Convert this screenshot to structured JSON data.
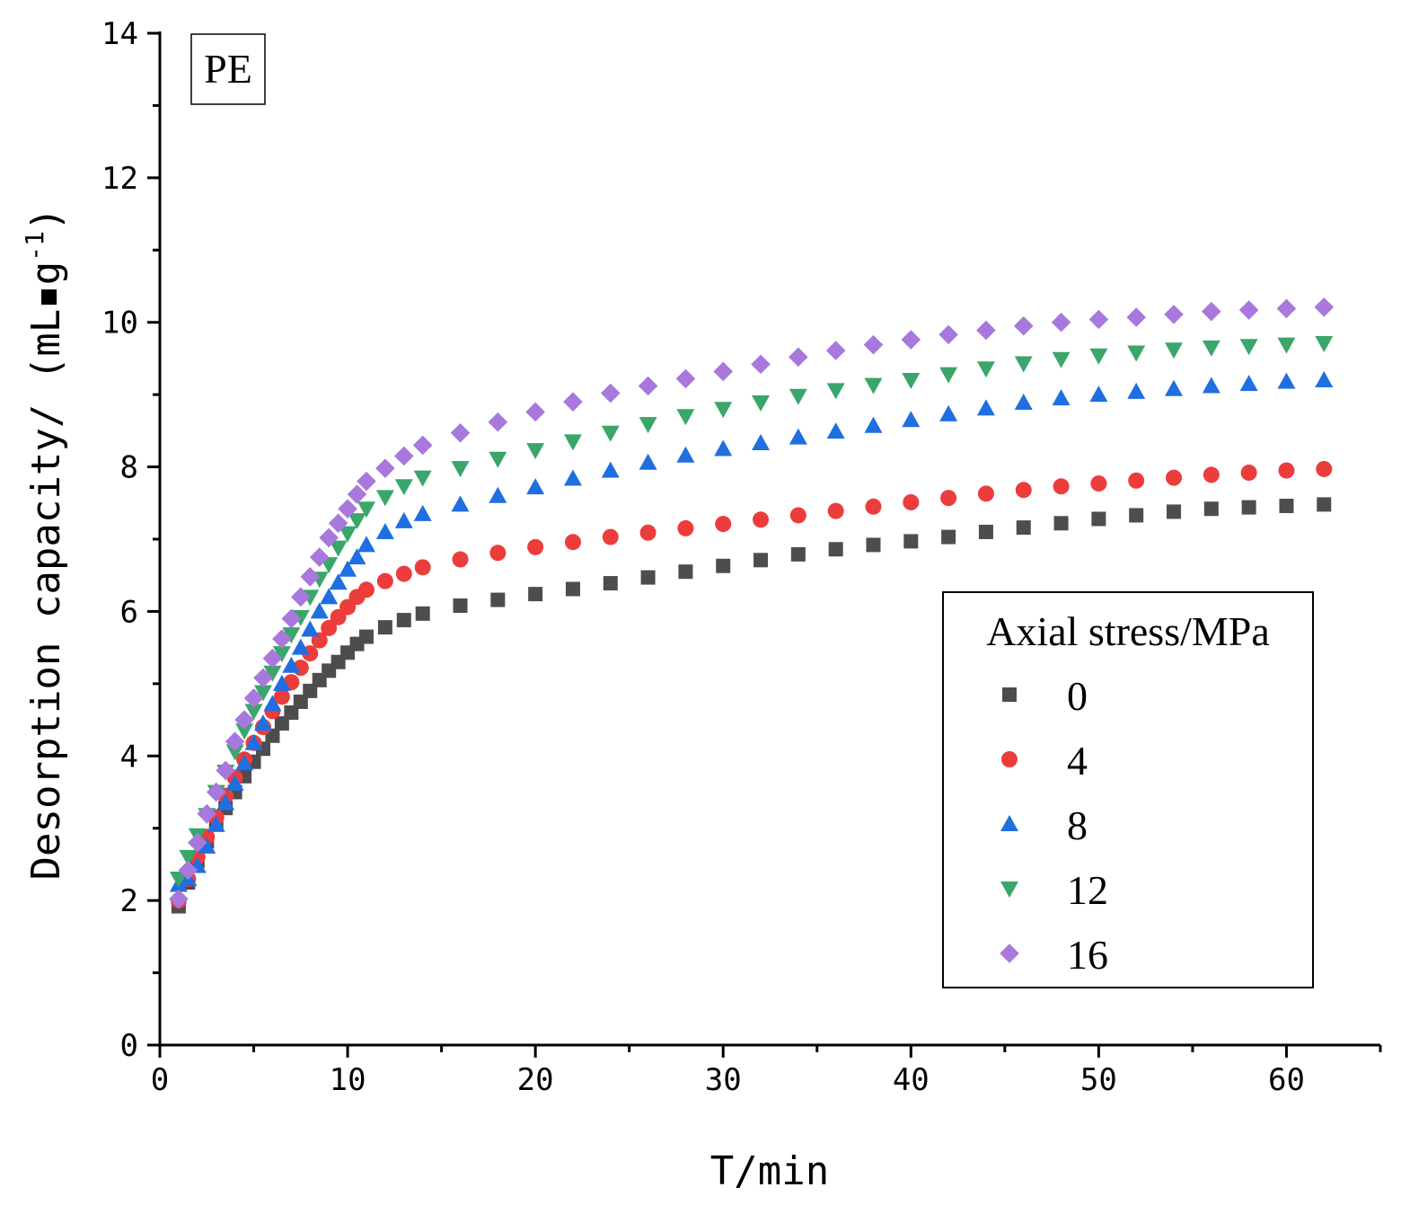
{
  "chart_data": {
    "type": "scatter",
    "title": "",
    "panel_label": "PE",
    "xlabel": "T/min",
    "ylabel_main": "Desorption capacity/  (mL",
    "ylabel_dot": "▪",
    "ylabel_unit": "g",
    "ylabel_sup": "-1",
    "ylabel_close": ")",
    "xlim": [
      0,
      65
    ],
    "ylim": [
      0,
      14
    ],
    "xticks": [
      0,
      10,
      20,
      30,
      40,
      50,
      60
    ],
    "yticks": [
      0,
      2,
      4,
      6,
      8,
      10,
      12,
      14
    ],
    "grid": false,
    "legend": {
      "title": "Axial stress/MPa",
      "position": "right"
    },
    "x": [
      1,
      1.5,
      2,
      2.5,
      3,
      3.5,
      4,
      4.5,
      5,
      5.5,
      6,
      6.5,
      7,
      7.5,
      8,
      8.5,
      9,
      9.5,
      10,
      10.5,
      11,
      12,
      13,
      14,
      16,
      18,
      20,
      22,
      24,
      26,
      28,
      30,
      32,
      34,
      36,
      38,
      40,
      42,
      44,
      46,
      48,
      50,
      52,
      54,
      56,
      58,
      60,
      62
    ],
    "series": [
      {
        "name": "0",
        "marker": "square",
        "color": "#4d4d4d",
        "values": [
          1.92,
          2.25,
          2.55,
          2.82,
          3.05,
          3.28,
          3.5,
          3.72,
          3.92,
          4.1,
          4.28,
          4.45,
          4.6,
          4.75,
          4.9,
          5.05,
          5.18,
          5.3,
          5.43,
          5.55,
          5.65,
          5.78,
          5.88,
          5.97,
          6.08,
          6.16,
          6.24,
          6.31,
          6.39,
          6.47,
          6.55,
          6.63,
          6.71,
          6.79,
          6.86,
          6.92,
          6.97,
          7.03,
          7.1,
          7.16,
          7.22,
          7.28,
          7.33,
          7.38,
          7.42,
          7.44,
          7.46,
          7.48
        ]
      },
      {
        "name": "4",
        "marker": "circle",
        "color": "#ec3c3c",
        "values": [
          2.0,
          2.3,
          2.6,
          2.88,
          3.15,
          3.45,
          3.7,
          3.95,
          4.18,
          4.4,
          4.62,
          4.82,
          5.02,
          5.22,
          5.42,
          5.6,
          5.77,
          5.92,
          6.06,
          6.2,
          6.3,
          6.42,
          6.52,
          6.61,
          6.72,
          6.81,
          6.89,
          6.96,
          7.03,
          7.09,
          7.15,
          7.21,
          7.27,
          7.33,
          7.39,
          7.45,
          7.51,
          7.57,
          7.63,
          7.68,
          7.73,
          7.77,
          7.81,
          7.85,
          7.89,
          7.92,
          7.95,
          7.97
        ]
      },
      {
        "name": "8",
        "marker": "triangle-up",
        "color": "#1f6fe0",
        "values": [
          2.22,
          2.3,
          2.48,
          2.75,
          3.05,
          3.35,
          3.62,
          3.9,
          4.18,
          4.45,
          4.72,
          5.0,
          5.25,
          5.5,
          5.75,
          6.0,
          6.2,
          6.4,
          6.58,
          6.75,
          6.92,
          7.1,
          7.25,
          7.35,
          7.48,
          7.6,
          7.72,
          7.84,
          7.95,
          8.06,
          8.16,
          8.25,
          8.33,
          8.41,
          8.49,
          8.57,
          8.65,
          8.73,
          8.81,
          8.89,
          8.95,
          9.0,
          9.04,
          9.08,
          9.12,
          9.15,
          9.18,
          9.2
        ]
      },
      {
        "name": "12",
        "marker": "triangle-down",
        "color": "#3aa66a",
        "values": [
          2.3,
          2.6,
          2.9,
          3.18,
          3.5,
          3.78,
          4.06,
          4.35,
          4.62,
          4.88,
          5.15,
          5.42,
          5.68,
          5.92,
          6.2,
          6.45,
          6.65,
          6.88,
          7.08,
          7.26,
          7.42,
          7.58,
          7.73,
          7.85,
          7.98,
          8.11,
          8.23,
          8.35,
          8.47,
          8.59,
          8.7,
          8.8,
          8.89,
          8.98,
          9.06,
          9.13,
          9.2,
          9.28,
          9.36,
          9.43,
          9.49,
          9.54,
          9.58,
          9.62,
          9.65,
          9.67,
          9.69,
          9.71
        ]
      },
      {
        "name": "16",
        "marker": "diamond",
        "color": "#a878dc",
        "values": [
          2.02,
          2.42,
          2.8,
          3.2,
          3.5,
          3.8,
          4.2,
          4.5,
          4.8,
          5.08,
          5.35,
          5.62,
          5.9,
          6.2,
          6.48,
          6.75,
          7.02,
          7.22,
          7.42,
          7.62,
          7.8,
          7.98,
          8.15,
          8.3,
          8.47,
          8.62,
          8.76,
          8.9,
          9.02,
          9.12,
          9.22,
          9.32,
          9.42,
          9.52,
          9.61,
          9.69,
          9.76,
          9.83,
          9.89,
          9.95,
          10.0,
          10.04,
          10.07,
          10.11,
          10.15,
          10.17,
          10.19,
          10.21
        ]
      }
    ]
  }
}
